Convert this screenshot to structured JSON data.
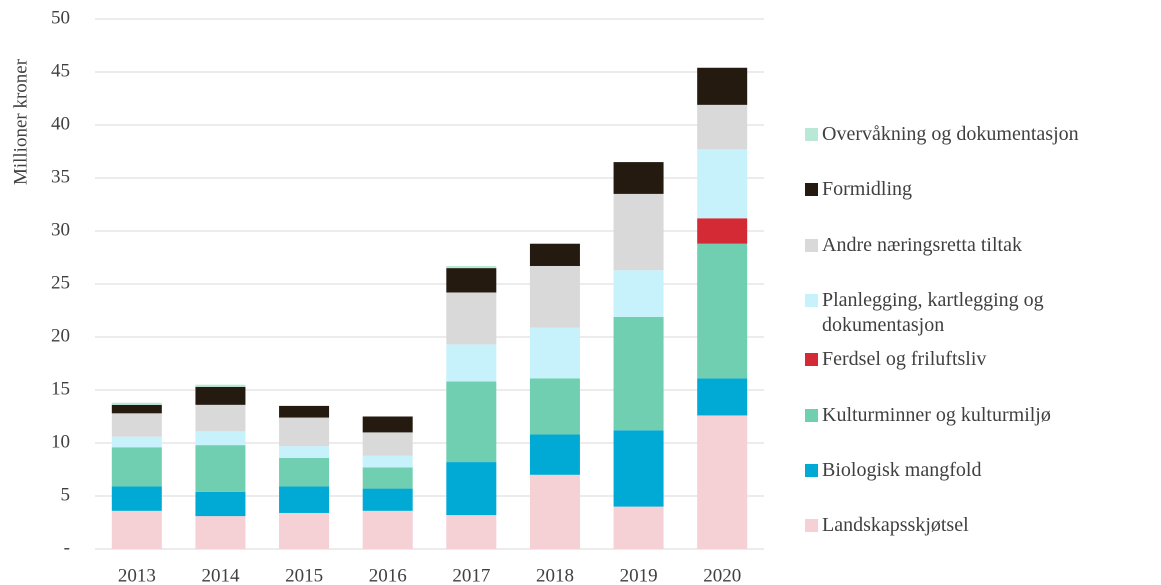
{
  "chart_data": {
    "type": "stacked_bar",
    "ylabel": "Millioner kroner",
    "categories": [
      "2013",
      "2014",
      "2015",
      "2016",
      "2017",
      "2018",
      "2019",
      "2020"
    ],
    "series": [
      {
        "name": "Landskapsskjøtsel",
        "color": "#f5d0d4",
        "values": [
          3.6,
          3.1,
          3.4,
          3.6,
          3.2,
          7.0,
          4.0,
          12.6
        ]
      },
      {
        "name": "Biologisk mangfold",
        "color": "#00aad4",
        "values": [
          2.3,
          2.3,
          2.5,
          2.1,
          5.0,
          3.8,
          7.2,
          3.5
        ]
      },
      {
        "name": "Kulturminner og kulturmiljø",
        "color": "#6fcfb0",
        "values": [
          3.7,
          4.4,
          2.7,
          2.0,
          7.6,
          5.3,
          10.7,
          12.7
        ]
      },
      {
        "name": "Ferdsel og friluftsliv",
        "color": "#d42a35",
        "values": [
          0,
          0,
          0,
          0,
          0,
          0,
          0,
          2.4
        ]
      },
      {
        "name": "Planlegging, kartlegging og dokumentasjon",
        "color": "#c7f1fb",
        "values": [
          1.0,
          1.3,
          1.1,
          1.1,
          3.5,
          4.8,
          4.4,
          6.5
        ]
      },
      {
        "name": "Andre næringsretta tiltak",
        "color": "#d9d9d9",
        "values": [
          2.2,
          2.5,
          2.7,
          2.2,
          4.9,
          5.8,
          7.2,
          4.2
        ]
      },
      {
        "name": "Formidling",
        "color": "#241a10",
        "values": [
          0.8,
          1.7,
          1.1,
          1.5,
          2.3,
          2.1,
          3.0,
          3.5
        ]
      },
      {
        "name": "Overvåkning og dokumentasjon",
        "color": "#b9e8d6",
        "values": [
          0.2,
          0.2,
          0,
          0,
          0.2,
          0,
          0,
          0
        ]
      }
    ],
    "ylim": [
      0,
      50
    ],
    "yticks": [
      {
        "value": 0,
        "label": "-"
      },
      5,
      10,
      15,
      20,
      25,
      30,
      35,
      40,
      45,
      50
    ],
    "grid": true
  }
}
